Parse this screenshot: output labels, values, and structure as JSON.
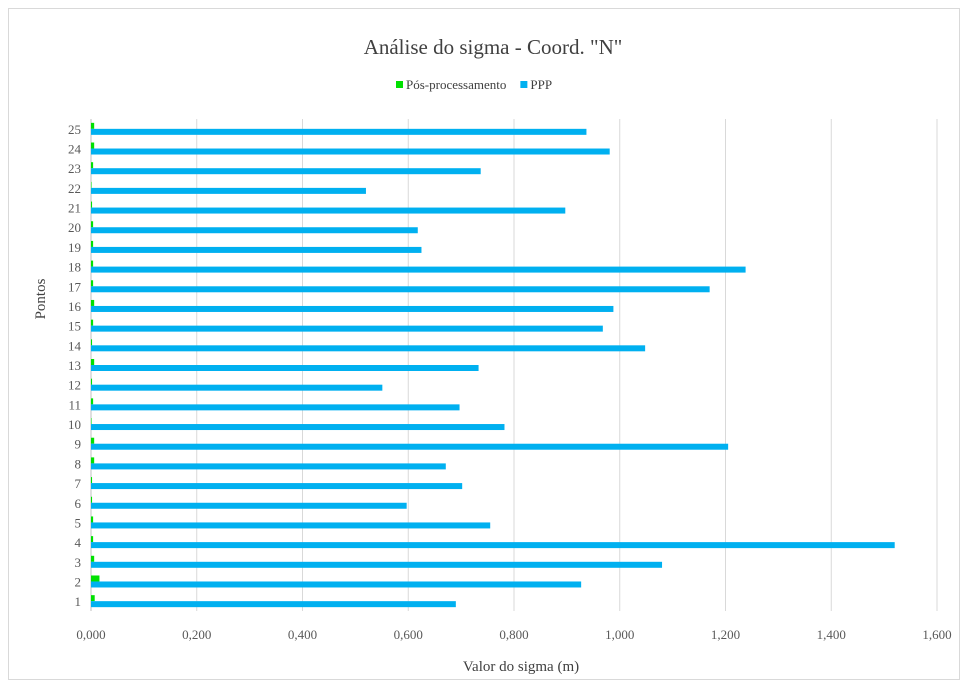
{
  "chart_data": {
    "type": "bar",
    "orientation": "horizontal",
    "title": "Análise  do sigma - Coord. \"N\"",
    "xlabel": "Valor  do sigma (m)",
    "ylabel": "Pontos",
    "xlim": [
      0,
      1.6
    ],
    "x_ticks": [
      "0,000",
      "0,200",
      "0,400",
      "0,600",
      "0,800",
      "1,000",
      "1,200",
      "1,400",
      "1,600"
    ],
    "grid": "vertical",
    "legend_position": "top",
    "categories": [
      "1",
      "2",
      "3",
      "4",
      "5",
      "6",
      "7",
      "8",
      "9",
      "10",
      "11",
      "12",
      "13",
      "14",
      "15",
      "16",
      "17",
      "18",
      "19",
      "20",
      "21",
      "22",
      "23",
      "24",
      "25"
    ],
    "series": [
      {
        "name": "Pós-processamento",
        "color": "#00e000",
        "values": [
          0.007,
          0.016,
          0.006,
          0.004,
          0.004,
          0.002,
          0.002,
          0.006,
          0.006,
          0.001,
          0.004,
          0.002,
          0.006,
          0.002,
          0.004,
          0.006,
          0.004,
          0.004,
          0.004,
          0.004,
          0.002,
          0.001,
          0.004,
          0.006,
          0.006
        ]
      },
      {
        "name": "PPP",
        "color": "#00b0f0",
        "values": [
          0.69,
          0.927,
          1.08,
          1.52,
          0.755,
          0.597,
          0.702,
          0.671,
          1.205,
          0.782,
          0.697,
          0.551,
          0.733,
          1.048,
          0.968,
          0.988,
          1.17,
          1.238,
          0.625,
          0.618,
          0.897,
          0.52,
          0.737,
          0.981,
          0.937
        ]
      }
    ]
  }
}
